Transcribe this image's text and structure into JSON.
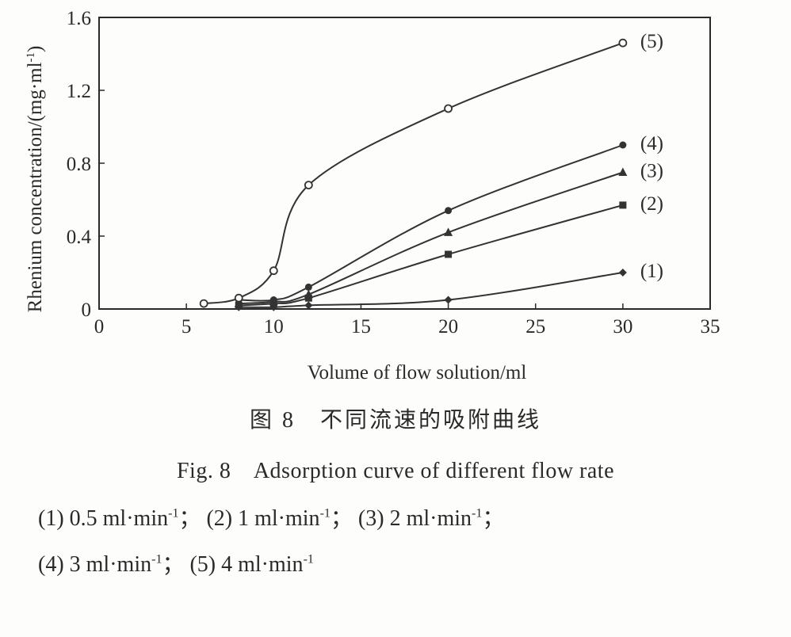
{
  "chart_data": {
    "type": "line",
    "xlabel": "Volume of flow solution/ml",
    "ylabel": "Rhenium concentration/(mg·ml",
    "ylabel_sup": "-1",
    "ylabel_close": ")",
    "xlim": [
      0,
      35
    ],
    "ylim": [
      0,
      1.6
    ],
    "xticks": [
      0,
      5,
      10,
      15,
      20,
      25,
      30,
      35
    ],
    "yticks": [
      0,
      0.4,
      0.8,
      1.2,
      1.6
    ],
    "ytick_labels": [
      "0",
      "0.4",
      "0.8",
      "1.2",
      "1.6"
    ],
    "grid": false,
    "series": [
      {
        "name": "(1)",
        "marker": "diamond",
        "x": [
          8,
          10,
          12,
          20,
          30
        ],
        "y": [
          0.01,
          0.01,
          0.02,
          0.05,
          0.2
        ]
      },
      {
        "name": "(2)",
        "marker": "square",
        "x": [
          8,
          10,
          12,
          20,
          30
        ],
        "y": [
          0.02,
          0.03,
          0.06,
          0.3,
          0.57
        ]
      },
      {
        "name": "(3)",
        "marker": "triangle",
        "x": [
          8,
          10,
          12,
          20,
          30
        ],
        "y": [
          0.03,
          0.04,
          0.08,
          0.42,
          0.75
        ]
      },
      {
        "name": "(4)",
        "marker": "filled-circle",
        "x": [
          8,
          10,
          12,
          20,
          30
        ],
        "y": [
          0.05,
          0.05,
          0.12,
          0.54,
          0.9
        ]
      },
      {
        "name": "(5)",
        "marker": "open-circle",
        "x": [
          6,
          8,
          10,
          12,
          20,
          30
        ],
        "y": [
          0.03,
          0.06,
          0.21,
          0.68,
          1.1,
          1.46
        ]
      }
    ]
  },
  "captions": {
    "cn": "图 8　不同流速的吸附曲线",
    "en": "Fig. 8　Adsorption curve of different flow rate"
  },
  "legend_text": {
    "line1": [
      {
        "num": "(1)",
        "val": "0.5 ml·min"
      },
      {
        "num": "(2)",
        "val": "1 ml·min"
      },
      {
        "num": "(3)",
        "val": "2 ml·min"
      }
    ],
    "line2": [
      {
        "num": "(4)",
        "val": "3 ml·min"
      },
      {
        "num": "(5)",
        "val": "4 ml·min"
      }
    ],
    "unit_sup": "-1"
  }
}
